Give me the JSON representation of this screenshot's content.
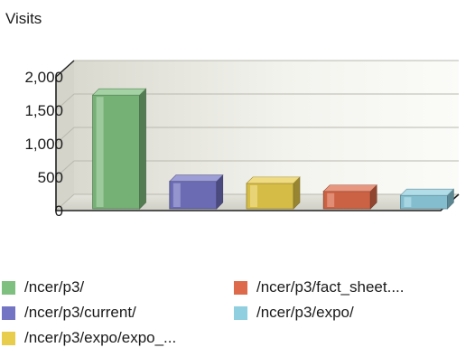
{
  "chart_data": {
    "type": "bar",
    "title": "",
    "ylabel": "Visits",
    "xlabel": "",
    "ylim": [
      0,
      2000
    ],
    "yticks": [
      "2,000",
      "1,500",
      "1,000",
      "500",
      "0"
    ],
    "categories": [
      "/ncer/p3/",
      "/ncer/p3/current/",
      "/ncer/p3/expo/expo_...",
      "/ncer/p3/fact_sheet....",
      "/ncer/p3/expo/"
    ],
    "values": [
      1700,
      410,
      380,
      260,
      200
    ],
    "colors": [
      "#7fbf7f",
      "#7474c4",
      "#e8cc4c",
      "#dd6a4a",
      "#8fcfe0"
    ],
    "grid": true,
    "legend_position": "bottom",
    "style": "3d"
  },
  "legend": {
    "items": [
      {
        "label": "/ncer/p3/",
        "color": "#7fbf7f"
      },
      {
        "label": "/ncer/p3/current/",
        "color": "#7474c4"
      },
      {
        "label": "/ncer/p3/expo/expo_...",
        "color": "#e8cc4c"
      },
      {
        "label": "/ncer/p3/fact_sheet....",
        "color": "#dd6a4a"
      },
      {
        "label": "/ncer/p3/expo/",
        "color": "#8fcfe0"
      }
    ]
  }
}
